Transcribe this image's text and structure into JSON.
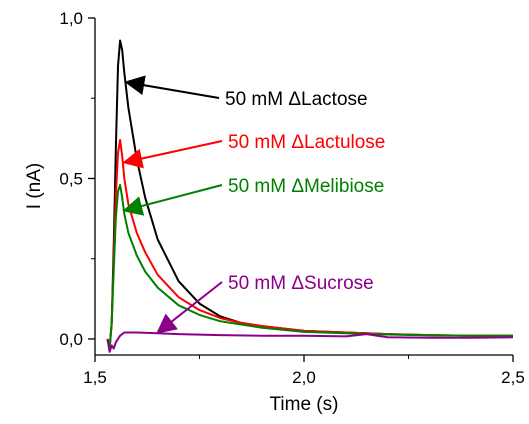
{
  "chart_data": {
    "type": "line",
    "xlabel": "Time (s)",
    "ylabel": "I (nA)",
    "xlim": [
      1.5,
      2.5
    ],
    "ylim": [
      -0.05,
      1.0
    ],
    "xticks": [
      1.5,
      2.0,
      2.5
    ],
    "xtick_labels": [
      "1,5",
      "2,0",
      "2,5"
    ],
    "yticks": [
      0.0,
      0.5,
      1.0
    ],
    "ytick_labels": [
      "0,0",
      "0,5",
      "1,0"
    ],
    "grid": false,
    "series": [
      {
        "name": "50 mM ΔLactose",
        "color": "#000000",
        "x": [
          1.53,
          1.535,
          1.54,
          1.545,
          1.55,
          1.555,
          1.56,
          1.565,
          1.57,
          1.58,
          1.6,
          1.62,
          1.65,
          1.7,
          1.75,
          1.8,
          1.85,
          1.9,
          2.0,
          2.1,
          2.2,
          2.3,
          2.4,
          2.5
        ],
        "y": [
          0.0,
          -0.03,
          0.05,
          0.3,
          0.6,
          0.85,
          0.93,
          0.9,
          0.83,
          0.72,
          0.56,
          0.44,
          0.31,
          0.18,
          0.11,
          0.07,
          0.05,
          0.04,
          0.025,
          0.02,
          0.015,
          0.012,
          0.01,
          0.01
        ]
      },
      {
        "name": "50 mM ΔLactulose",
        "color": "#ff0000",
        "x": [
          1.53,
          1.535,
          1.54,
          1.545,
          1.55,
          1.555,
          1.56,
          1.565,
          1.57,
          1.58,
          1.6,
          1.62,
          1.65,
          1.7,
          1.75,
          1.8,
          1.85,
          1.9,
          2.0,
          2.1,
          2.2,
          2.3,
          2.4,
          2.5
        ],
        "y": [
          0.0,
          -0.03,
          0.05,
          0.25,
          0.45,
          0.58,
          0.62,
          0.57,
          0.5,
          0.42,
          0.33,
          0.27,
          0.2,
          0.13,
          0.09,
          0.065,
          0.05,
          0.04,
          0.025,
          0.02,
          0.015,
          0.012,
          0.01,
          0.01
        ]
      },
      {
        "name": "50 mM ΔMelibiose",
        "color": "#008000",
        "x": [
          1.53,
          1.535,
          1.54,
          1.545,
          1.55,
          1.555,
          1.56,
          1.565,
          1.57,
          1.58,
          1.6,
          1.62,
          1.65,
          1.7,
          1.75,
          1.8,
          1.85,
          1.9,
          2.0,
          2.1,
          2.2,
          2.3,
          2.4,
          2.5
        ],
        "y": [
          0.0,
          -0.03,
          0.05,
          0.22,
          0.38,
          0.46,
          0.48,
          0.44,
          0.39,
          0.33,
          0.26,
          0.21,
          0.16,
          0.105,
          0.075,
          0.055,
          0.045,
          0.035,
          0.022,
          0.018,
          0.014,
          0.011,
          0.01,
          0.01
        ]
      },
      {
        "name": "50 mM ΔSucrose",
        "color": "#8b008b",
        "x": [
          1.53,
          1.535,
          1.54,
          1.545,
          1.55,
          1.555,
          1.56,
          1.57,
          1.58,
          1.6,
          1.65,
          1.7,
          1.8,
          1.9,
          2.0,
          2.1,
          2.15,
          2.2,
          2.3,
          2.4,
          2.5
        ],
        "y": [
          0.0,
          -0.04,
          -0.02,
          -0.03,
          -0.01,
          0.0,
          0.01,
          0.02,
          0.02,
          0.02,
          0.018,
          0.015,
          0.012,
          0.01,
          0.01,
          0.008,
          0.015,
          0.005,
          0.004,
          0.004,
          0.005
        ]
      }
    ],
    "annotations": [
      {
        "text": "50 mM ΔLactose",
        "color": "#000000",
        "arrow_to": [
          1.575,
          0.8
        ]
      },
      {
        "text": "50 mM ΔLactulose",
        "color": "#ff0000",
        "arrow_to": [
          1.57,
          0.55
        ]
      },
      {
        "text": "50 mM ΔMelibiose",
        "color": "#008000",
        "arrow_to": [
          1.57,
          0.4
        ]
      },
      {
        "text": "50 mM ΔSucrose",
        "color": "#8b008b",
        "arrow_to": [
          1.65,
          0.02
        ]
      }
    ]
  }
}
